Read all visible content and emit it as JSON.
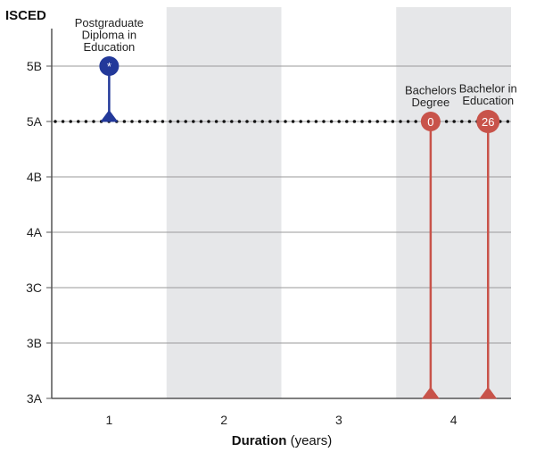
{
  "chart_data": {
    "type": "scatter",
    "ylabel": "ISCED",
    "xlabel_bold": "Duration",
    "xlabel_rest": " (years)",
    "y_levels": [
      "3A",
      "3B",
      "3C",
      "4A",
      "4B",
      "5A",
      "5B"
    ],
    "x_ticks": [
      "1",
      "2",
      "3",
      "4"
    ],
    "xlim": [
      0.5,
      4.5
    ],
    "shaded_columns": [
      2,
      4
    ],
    "reference_level": "5A",
    "grid": true,
    "series": [
      {
        "label_lines": [
          "Postgraduate",
          "Diploma in",
          "Education"
        ],
        "duration": 1,
        "level": "5B",
        "entry_level": "5A",
        "marker_text": "*",
        "color": "#23399a"
      },
      {
        "label_lines": [
          "Bachelors",
          "Degree"
        ],
        "duration": 3.8,
        "level": "5A",
        "entry_level": "3A",
        "marker_text": "0",
        "color": "#c8534a"
      },
      {
        "label_lines": [
          "Bachelor in",
          "Education"
        ],
        "duration": 4.3,
        "level": "5A",
        "entry_level": "3A",
        "marker_text": "26",
        "color": "#c8534a"
      }
    ],
    "colors": {
      "shade": "#e6e7e9",
      "grid": "#9a9a9a",
      "axis": "#555555",
      "dotted": "#111111"
    }
  }
}
